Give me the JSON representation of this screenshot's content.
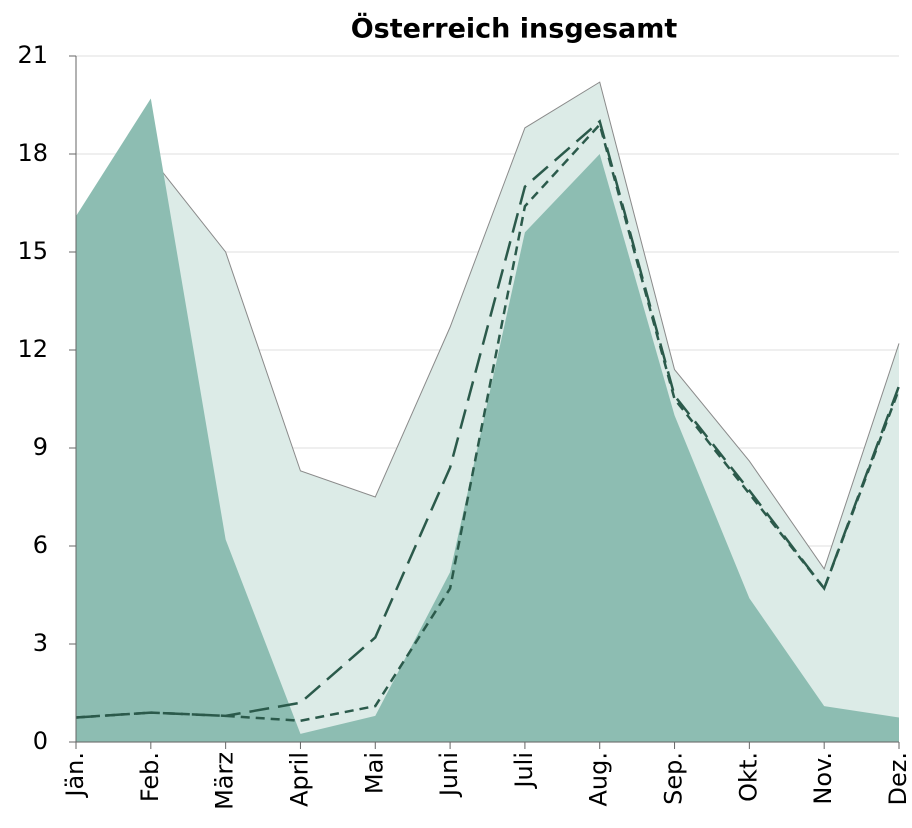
{
  "chart_data": {
    "type": "area",
    "title": "Österreich insgesamt",
    "categories": [
      "Jän.",
      "Feb.",
      "März",
      "April",
      "Mai",
      "Juni",
      "Juli",
      "Aug.",
      "Sep.",
      "Okt.",
      "Nov.",
      "Dez."
    ],
    "series": [
      {
        "kind": "area",
        "color": "#dcebe7",
        "outline": "#8a8a8a",
        "values": [
          15.1,
          17.9,
          15.0,
          8.3,
          7.5,
          12.7,
          18.8,
          20.2,
          11.4,
          8.6,
          5.3,
          12.2
        ]
      },
      {
        "kind": "area",
        "color": "#8dbdb2",
        "values": [
          16.1,
          19.7,
          6.2,
          0.25,
          0.8,
          5.2,
          15.6,
          18.0,
          10.0,
          4.4,
          1.1,
          0.75
        ]
      },
      {
        "kind": "line",
        "dash": "long",
        "color": "#2b5a4b",
        "values": [
          0.75,
          0.9,
          0.8,
          1.2,
          3.2,
          8.4,
          17.0,
          19.0,
          10.6,
          7.7,
          4.7,
          10.9
        ]
      },
      {
        "kind": "line",
        "dash": "short",
        "color": "#2b5a4b",
        "values": [
          0.75,
          0.9,
          0.8,
          0.65,
          1.1,
          4.7,
          16.4,
          18.9,
          10.5,
          7.6,
          4.7,
          10.8
        ]
      }
    ],
    "ylim": [
      0,
      21
    ],
    "yticks": [
      0,
      3,
      6,
      9,
      12,
      15,
      18,
      21
    ],
    "grid": true
  }
}
